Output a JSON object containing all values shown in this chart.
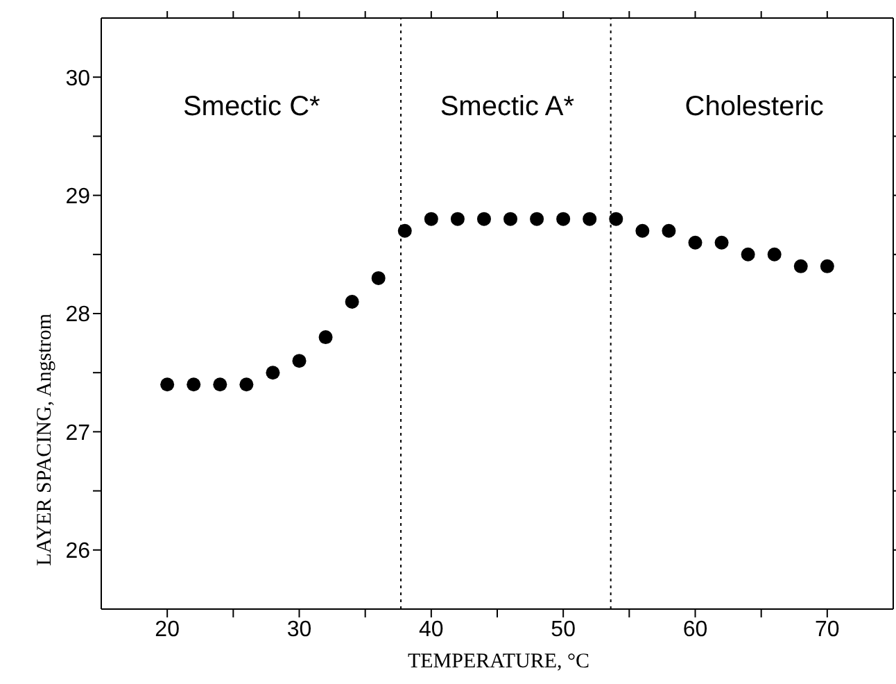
{
  "chart_data": {
    "type": "scatter",
    "xlabel": "TEMPERATURE, °C",
    "ylabel": "LAYER SPACING, Angstrom",
    "x": [
      20,
      22,
      24,
      26,
      28,
      30,
      32,
      34,
      36,
      38,
      40,
      42,
      44,
      46,
      48,
      50,
      52,
      54,
      56,
      58,
      60,
      62,
      64,
      66,
      68,
      70
    ],
    "series": [
      {
        "color": "#000000",
        "values": [
          27.4,
          27.4,
          27.4,
          27.4,
          27.5,
          27.6,
          27.8,
          28.1,
          28.3,
          28.7,
          28.8,
          28.8,
          28.8,
          28.8,
          28.8,
          28.8,
          28.8,
          28.8,
          28.7,
          28.7,
          28.6,
          28.6,
          28.5,
          28.5,
          28.4,
          28.4
        ]
      }
    ],
    "xlim": [
      15,
      75
    ],
    "ylim": [
      25.5,
      30.5
    ],
    "xticks": [
      20,
      {
        "value": 25,
        "label": null
      },
      30,
      {
        "value": 35,
        "label": null
      },
      40,
      {
        "value": 45,
        "label": null
      },
      50,
      {
        "value": 55,
        "label": null
      },
      60,
      {
        "value": 65,
        "label": null
      },
      70
    ],
    "yticks": [
      26,
      {
        "value": 26.5,
        "label": null
      },
      27,
      {
        "value": 27.5,
        "label": null
      },
      28,
      {
        "value": 28.5,
        "label": null
      },
      29,
      {
        "value": 29.5,
        "label": null
      },
      30
    ],
    "ref_lines": [
      {
        "axis": "x",
        "value": 37.7,
        "color": "#000000",
        "line_style": "dotted"
      },
      {
        "axis": "x",
        "value": 53.6,
        "color": "#000000",
        "line_style": "dotted"
      }
    ],
    "annotations": [
      "Smectic C*",
      "Smectic A*",
      "Cholesteric"
    ],
    "marker": "circle",
    "grid": false,
    "legend": false
  }
}
